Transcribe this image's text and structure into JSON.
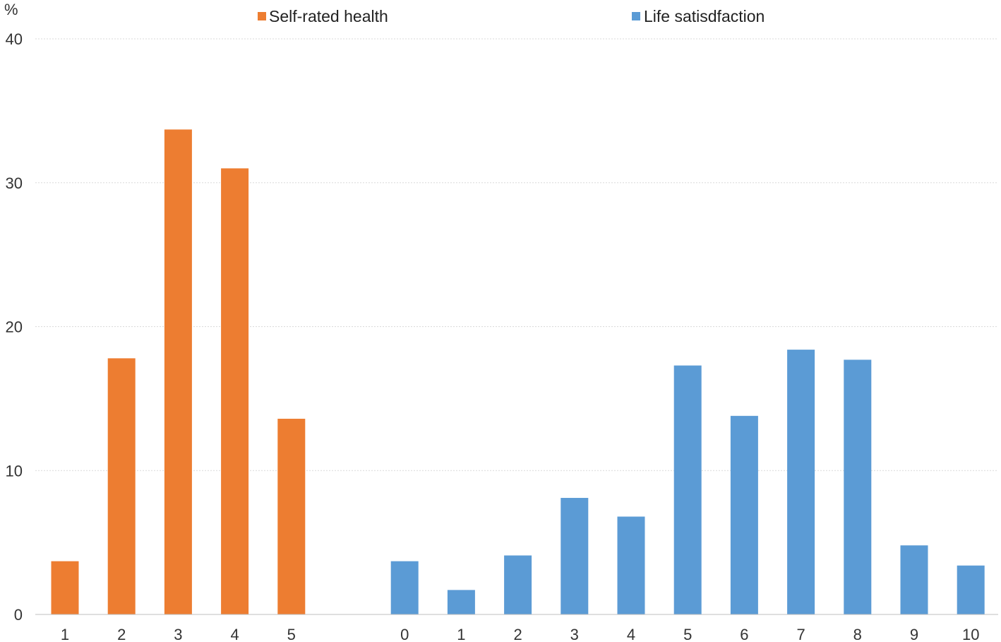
{
  "chart_data": {
    "type": "bar",
    "ylabel": "%",
    "ylim": [
      0,
      40
    ],
    "yticks": [
      0,
      10,
      20,
      30,
      40
    ],
    "grid": true,
    "legend_position": "top",
    "series": [
      {
        "name": "Self-rated health",
        "color": "#ED7D31",
        "categories": [
          "1",
          "2",
          "3",
          "4",
          "5"
        ],
        "values": [
          3.7,
          17.8,
          33.7,
          31.0,
          13.6
        ]
      },
      {
        "name": "Life satisdfaction",
        "color": "#5B9BD5",
        "categories": [
          "0",
          "1",
          "2",
          "3",
          "4",
          "5",
          "6",
          "7",
          "8",
          "9",
          "10"
        ],
        "values": [
          3.7,
          1.7,
          4.1,
          8.1,
          6.8,
          17.3,
          13.8,
          18.4,
          17.7,
          4.8,
          3.4
        ]
      }
    ]
  }
}
